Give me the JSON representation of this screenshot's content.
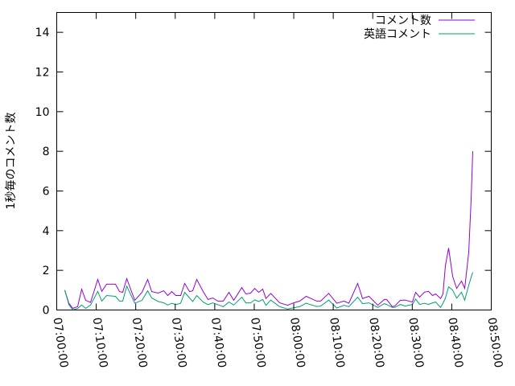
{
  "chart_data": {
    "type": "line",
    "title": "",
    "xlabel": "",
    "ylabel": "1秒毎のコメント数",
    "xlim": [
      "07:00:00",
      "08:50:00"
    ],
    "ylim": [
      0,
      15
    ],
    "x_ticks": [
      "07:00:00",
      "07:10:00",
      "07:20:00",
      "07:30:00",
      "07:40:00",
      "07:50:00",
      "08:00:00",
      "08:10:00",
      "08:20:00",
      "08:30:00",
      "08:40:00",
      "08:50:00"
    ],
    "y_ticks": [
      0,
      2,
      4,
      6,
      8,
      10,
      12,
      14
    ],
    "grid": false,
    "legend_position": "top-right",
    "x": [
      "07:02:02",
      "07:03:04",
      "07:04:04",
      "07:05:18",
      "07:06:19",
      "07:07:20",
      "07:08:33",
      "07:10:23",
      "07:11:25",
      "07:12:38",
      "07:14:52",
      "07:15:53",
      "07:16:42",
      "07:17:43",
      "07:19:46",
      "07:21:36",
      "07:23:01",
      "07:24:02",
      "07:25:40",
      "07:27:06",
      "07:28:07",
      "07:29:08",
      "07:30:09",
      "07:31:22",
      "07:32:23",
      "07:33:37",
      "07:34:26",
      "07:35:27",
      "07:37:04",
      "07:38:18",
      "07:39:31",
      "07:40:44",
      "07:42:10",
      "07:43:36",
      "07:44:49",
      "07:46:51",
      "07:47:52",
      "07:49:05",
      "07:50:07",
      "07:51:08",
      "07:52:09",
      "07:52:58",
      "07:54:11",
      "07:56:26",
      "07:58:28",
      "07:59:41",
      "08:01:31",
      "08:03:09",
      "08:05:48",
      "08:06:49",
      "08:08:51",
      "08:10:53",
      "08:12:43",
      "08:13:57",
      "08:16:11",
      "08:17:25",
      "08:19:02",
      "08:21:17",
      "08:22:55",
      "08:23:31",
      "08:24:57",
      "08:25:34",
      "08:26:59",
      "08:28:13",
      "08:30:02",
      "08:30:51",
      "08:31:52",
      "08:33:05",
      "08:34:07",
      "08:35:08",
      "08:35:56",
      "08:37:10",
      "08:37:47",
      "08:38:23",
      "08:39:12",
      "08:40:13",
      "08:41:14",
      "08:42:28",
      "08:43:17",
      "08:44:18",
      "08:44:55",
      "08:45:19"
    ],
    "series": [
      {
        "name": "コメント数",
        "color": "#9400d3",
        "values": [
          1.0,
          0.34,
          0.08,
          0.17,
          1.05,
          0.49,
          0.38,
          1.54,
          0.94,
          1.3,
          1.3,
          0.93,
          0.89,
          1.58,
          0.49,
          0.89,
          1.54,
          0.93,
          0.85,
          0.97,
          0.73,
          0.93,
          0.73,
          0.73,
          1.34,
          0.93,
          0.97,
          1.54,
          0.93,
          0.53,
          0.61,
          0.45,
          0.45,
          0.89,
          0.49,
          1.13,
          0.81,
          0.85,
          1.09,
          0.89,
          1.05,
          0.58,
          0.84,
          0.36,
          0.24,
          0.34,
          0.45,
          0.69,
          0.45,
          0.45,
          0.84,
          0.34,
          0.45,
          0.34,
          1.34,
          0.58,
          0.69,
          0.24,
          0.53,
          0.53,
          0.17,
          0.2,
          0.49,
          0.5,
          0.4,
          0.89,
          0.65,
          0.9,
          0.94,
          0.73,
          0.81,
          0.58,
          0.81,
          2.23,
          3.12,
          1.7,
          1.09,
          1.46,
          1.09,
          2.9,
          5.6,
          8.0
        ]
      },
      {
        "name": "英語コメント",
        "color": "#009e73",
        "values": [
          1.0,
          0.27,
          0.0,
          0.08,
          0.25,
          0.08,
          0.25,
          0.94,
          0.45,
          0.73,
          0.69,
          0.45,
          0.45,
          1.21,
          0.34,
          0.49,
          0.97,
          0.61,
          0.43,
          0.36,
          0.25,
          0.34,
          0.27,
          0.34,
          0.89,
          0.61,
          0.43,
          0.73,
          0.4,
          0.27,
          0.36,
          0.27,
          0.17,
          0.4,
          0.25,
          0.65,
          0.36,
          0.36,
          0.51,
          0.43,
          0.53,
          0.24,
          0.5,
          0.17,
          0.05,
          0.1,
          0.17,
          0.34,
          0.18,
          0.2,
          0.5,
          0.1,
          0.24,
          0.17,
          0.65,
          0.32,
          0.36,
          0.13,
          0.32,
          0.28,
          0.13,
          0.13,
          0.28,
          0.2,
          0.28,
          0.55,
          0.28,
          0.34,
          0.28,
          0.36,
          0.4,
          0.13,
          0.34,
          0.6,
          1.17,
          1.0,
          0.6,
          0.9,
          0.5,
          1.24,
          1.65,
          1.9
        ]
      }
    ]
  }
}
